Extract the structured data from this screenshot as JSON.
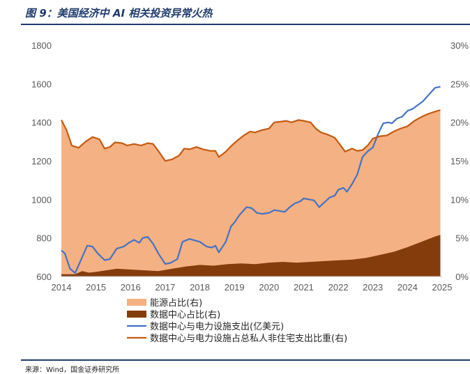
{
  "header": {
    "title": "图 9：美国经济中 AI 相关投资异常火热"
  },
  "footer": {
    "source": "来源：Wind，国金证券研究所"
  },
  "colors": {
    "energy_area": "#F4B183",
    "dc_area": "#843C0C",
    "blue_line": "#4472C4",
    "orange_line": "#C55A11"
  },
  "chart_data": {
    "type": "area",
    "x_ticks": [
      "2014",
      "2015",
      "2016",
      "2017",
      "2018",
      "2019",
      "2020",
      "2021",
      "2022",
      "2023",
      "2024",
      "2025"
    ],
    "y_left_ticks": [
      "600",
      "800",
      "1000",
      "1200",
      "1400",
      "1600",
      "1800"
    ],
    "y_right_ticks": [
      "0%",
      "5%",
      "10%",
      "15%",
      "20%",
      "25%",
      "30%"
    ],
    "y_left_range": [
      600,
      1800
    ],
    "y_right_range": [
      0,
      30
    ],
    "x_range": [
      2014,
      2025
    ],
    "legend_position": "bottom",
    "series": [
      {
        "name": "能源占比(右)",
        "type": "area",
        "axis": "right",
        "points": [
          [
            2014.0,
            20.3
          ],
          [
            2014.15,
            19.0
          ],
          [
            2014.3,
            17.0
          ],
          [
            2014.5,
            16.7
          ],
          [
            2014.7,
            17.5
          ],
          [
            2014.9,
            18.1
          ],
          [
            2015.1,
            17.8
          ],
          [
            2015.25,
            16.6
          ],
          [
            2015.4,
            16.8
          ],
          [
            2015.55,
            17.4
          ],
          [
            2015.75,
            17.3
          ],
          [
            2015.9,
            17.0
          ],
          [
            2016.1,
            17.2
          ],
          [
            2016.3,
            17.0
          ],
          [
            2016.5,
            17.3
          ],
          [
            2016.65,
            17.2
          ],
          [
            2016.8,
            16.3
          ],
          [
            2017.0,
            15.0
          ],
          [
            2017.2,
            15.2
          ],
          [
            2017.4,
            15.7
          ],
          [
            2017.55,
            16.6
          ],
          [
            2017.7,
            16.5
          ],
          [
            2017.9,
            16.8
          ],
          [
            2018.1,
            16.5
          ],
          [
            2018.3,
            16.3
          ],
          [
            2018.45,
            16.3
          ],
          [
            2018.55,
            15.5
          ],
          [
            2018.75,
            16.2
          ],
          [
            2018.9,
            16.9
          ],
          [
            2019.1,
            17.7
          ],
          [
            2019.3,
            18.4
          ],
          [
            2019.45,
            18.8
          ],
          [
            2019.6,
            18.7
          ],
          [
            2019.8,
            19.0
          ],
          [
            2020.0,
            19.2
          ],
          [
            2020.15,
            20.0
          ],
          [
            2020.35,
            20.1
          ],
          [
            2020.5,
            20.2
          ],
          [
            2020.65,
            20.0
          ],
          [
            2020.85,
            20.3
          ],
          [
            2021.0,
            20.2
          ],
          [
            2021.2,
            20.0
          ],
          [
            2021.35,
            19.2
          ],
          [
            2021.5,
            18.7
          ],
          [
            2021.7,
            18.4
          ],
          [
            2021.9,
            18.0
          ],
          [
            2022.0,
            17.4
          ],
          [
            2022.2,
            16.2
          ],
          [
            2022.4,
            16.6
          ],
          [
            2022.55,
            16.3
          ],
          [
            2022.7,
            16.4
          ],
          [
            2022.85,
            17.0
          ],
          [
            2023.0,
            17.9
          ],
          [
            2023.2,
            18.2
          ],
          [
            2023.4,
            18.3
          ],
          [
            2023.6,
            18.8
          ],
          [
            2023.8,
            19.2
          ],
          [
            2024.0,
            19.5
          ],
          [
            2024.2,
            20.2
          ],
          [
            2024.4,
            20.7
          ],
          [
            2024.6,
            21.1
          ],
          [
            2024.8,
            21.4
          ],
          [
            2024.95,
            21.6
          ]
        ]
      },
      {
        "name": "数据中心占比(右)",
        "type": "area",
        "axis": "right",
        "points": [
          [
            2014.0,
            0.3
          ],
          [
            2014.4,
            0.3
          ],
          [
            2014.6,
            0.7
          ],
          [
            2014.8,
            0.5
          ],
          [
            2015.0,
            0.6
          ],
          [
            2015.3,
            0.8
          ],
          [
            2015.6,
            1.0
          ],
          [
            2016.0,
            0.9
          ],
          [
            2016.4,
            0.8
          ],
          [
            2016.8,
            0.7
          ],
          [
            2017.2,
            1.0
          ],
          [
            2017.6,
            1.3
          ],
          [
            2018.0,
            1.5
          ],
          [
            2018.4,
            1.4
          ],
          [
            2018.8,
            1.6
          ],
          [
            2019.2,
            1.7
          ],
          [
            2019.6,
            1.6
          ],
          [
            2020.0,
            1.8
          ],
          [
            2020.4,
            1.9
          ],
          [
            2020.8,
            1.8
          ],
          [
            2021.2,
            1.9
          ],
          [
            2021.6,
            2.0
          ],
          [
            2022.0,
            2.1
          ],
          [
            2022.4,
            2.2
          ],
          [
            2022.8,
            2.4
          ],
          [
            2023.2,
            2.8
          ],
          [
            2023.6,
            3.2
          ],
          [
            2024.0,
            3.8
          ],
          [
            2024.4,
            4.5
          ],
          [
            2024.8,
            5.2
          ],
          [
            2024.95,
            5.4
          ]
        ]
      },
      {
        "name": "数据中心与电力设施支出(亿美元)",
        "type": "line",
        "axis": "left",
        "points": [
          [
            2014.0,
            735
          ],
          [
            2014.1,
            720
          ],
          [
            2014.25,
            640
          ],
          [
            2014.4,
            618
          ],
          [
            2014.6,
            700
          ],
          [
            2014.75,
            760
          ],
          [
            2014.9,
            755
          ],
          [
            2015.05,
            720
          ],
          [
            2015.25,
            685
          ],
          [
            2015.4,
            690
          ],
          [
            2015.6,
            745
          ],
          [
            2015.8,
            755
          ],
          [
            2015.95,
            775
          ],
          [
            2016.1,
            790
          ],
          [
            2016.25,
            775
          ],
          [
            2016.35,
            800
          ],
          [
            2016.5,
            805
          ],
          [
            2016.65,
            770
          ],
          [
            2016.8,
            720
          ],
          [
            2017.0,
            665
          ],
          [
            2017.15,
            670
          ],
          [
            2017.35,
            690
          ],
          [
            2017.5,
            780
          ],
          [
            2017.7,
            795
          ],
          [
            2017.8,
            790
          ],
          [
            2018.0,
            780
          ],
          [
            2018.2,
            755
          ],
          [
            2018.35,
            750
          ],
          [
            2018.45,
            760
          ],
          [
            2018.55,
            725
          ],
          [
            2018.75,
            780
          ],
          [
            2018.9,
            860
          ],
          [
            2019.0,
            880
          ],
          [
            2019.15,
            920
          ],
          [
            2019.35,
            960
          ],
          [
            2019.5,
            955
          ],
          [
            2019.65,
            930
          ],
          [
            2019.8,
            925
          ],
          [
            2020.0,
            930
          ],
          [
            2020.15,
            945
          ],
          [
            2020.3,
            940
          ],
          [
            2020.45,
            935
          ],
          [
            2020.6,
            960
          ],
          [
            2020.75,
            980
          ],
          [
            2020.9,
            990
          ],
          [
            2021.0,
            1005
          ],
          [
            2021.15,
            1000
          ],
          [
            2021.3,
            995
          ],
          [
            2021.45,
            960
          ],
          [
            2021.6,
            985
          ],
          [
            2021.75,
            1010
          ],
          [
            2021.9,
            1020
          ],
          [
            2022.0,
            1050
          ],
          [
            2022.15,
            1060
          ],
          [
            2022.25,
            1040
          ],
          [
            2022.4,
            1080
          ],
          [
            2022.55,
            1130
          ],
          [
            2022.7,
            1220
          ],
          [
            2022.85,
            1250
          ],
          [
            2023.0,
            1270
          ],
          [
            2023.15,
            1340
          ],
          [
            2023.3,
            1395
          ],
          [
            2023.45,
            1400
          ],
          [
            2023.55,
            1395
          ],
          [
            2023.7,
            1420
          ],
          [
            2023.85,
            1430
          ],
          [
            2024.0,
            1460
          ],
          [
            2024.15,
            1470
          ],
          [
            2024.3,
            1490
          ],
          [
            2024.45,
            1510
          ],
          [
            2024.6,
            1540
          ],
          [
            2024.7,
            1560
          ],
          [
            2024.8,
            1580
          ],
          [
            2024.95,
            1585
          ]
        ]
      },
      {
        "name": "数据中心与电力设施占总私人非住宅支出比重(右)",
        "type": "line",
        "axis": "right",
        "points": [
          [
            2014.0,
            20.3
          ],
          [
            2014.15,
            19.0
          ],
          [
            2014.3,
            17.0
          ],
          [
            2014.5,
            16.7
          ],
          [
            2014.7,
            17.5
          ],
          [
            2014.9,
            18.1
          ],
          [
            2015.1,
            17.8
          ],
          [
            2015.25,
            16.6
          ],
          [
            2015.4,
            16.8
          ],
          [
            2015.55,
            17.4
          ],
          [
            2015.75,
            17.3
          ],
          [
            2015.9,
            17.0
          ],
          [
            2016.1,
            17.2
          ],
          [
            2016.3,
            17.0
          ],
          [
            2016.5,
            17.3
          ],
          [
            2016.65,
            17.2
          ],
          [
            2016.8,
            16.3
          ],
          [
            2017.0,
            15.0
          ],
          [
            2017.2,
            15.2
          ],
          [
            2017.4,
            15.7
          ],
          [
            2017.55,
            16.6
          ],
          [
            2017.7,
            16.5
          ],
          [
            2017.9,
            16.8
          ],
          [
            2018.1,
            16.5
          ],
          [
            2018.3,
            16.3
          ],
          [
            2018.45,
            16.3
          ],
          [
            2018.55,
            15.5
          ],
          [
            2018.75,
            16.2
          ],
          [
            2018.9,
            16.9
          ],
          [
            2019.1,
            17.7
          ],
          [
            2019.3,
            18.4
          ],
          [
            2019.45,
            18.8
          ],
          [
            2019.6,
            18.7
          ],
          [
            2019.8,
            19.0
          ],
          [
            2020.0,
            19.2
          ],
          [
            2020.15,
            20.0
          ],
          [
            2020.35,
            20.1
          ],
          [
            2020.5,
            20.2
          ],
          [
            2020.65,
            20.0
          ],
          [
            2020.85,
            20.3
          ],
          [
            2021.0,
            20.2
          ],
          [
            2021.2,
            20.0
          ],
          [
            2021.35,
            19.2
          ],
          [
            2021.5,
            18.7
          ],
          [
            2021.7,
            18.4
          ],
          [
            2021.9,
            18.0
          ],
          [
            2022.0,
            17.4
          ],
          [
            2022.2,
            16.2
          ],
          [
            2022.4,
            16.6
          ],
          [
            2022.55,
            16.3
          ],
          [
            2022.7,
            16.4
          ],
          [
            2022.85,
            17.0
          ],
          [
            2023.0,
            17.9
          ],
          [
            2023.2,
            18.2
          ],
          [
            2023.4,
            18.3
          ],
          [
            2023.6,
            18.8
          ],
          [
            2023.8,
            19.2
          ],
          [
            2024.0,
            19.5
          ],
          [
            2024.2,
            20.2
          ],
          [
            2024.4,
            20.7
          ],
          [
            2024.6,
            21.1
          ],
          [
            2024.8,
            21.4
          ],
          [
            2024.95,
            21.6
          ]
        ]
      }
    ]
  }
}
